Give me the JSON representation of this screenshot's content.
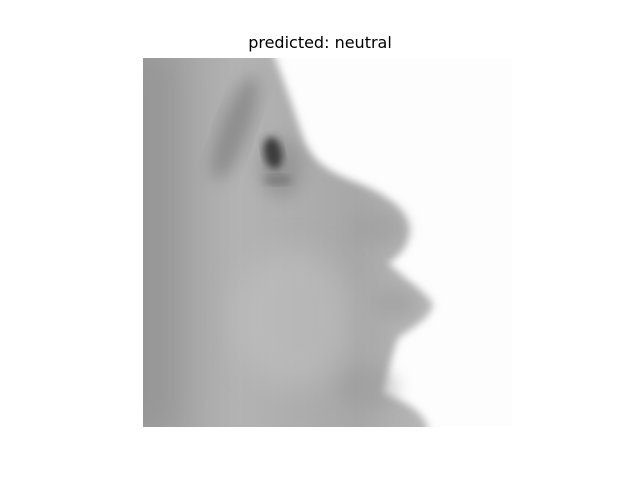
{
  "figure": {
    "title": "predicted: neutral",
    "image": {
      "content": "grayscale-face-profile",
      "colormap": "gray"
    }
  }
}
